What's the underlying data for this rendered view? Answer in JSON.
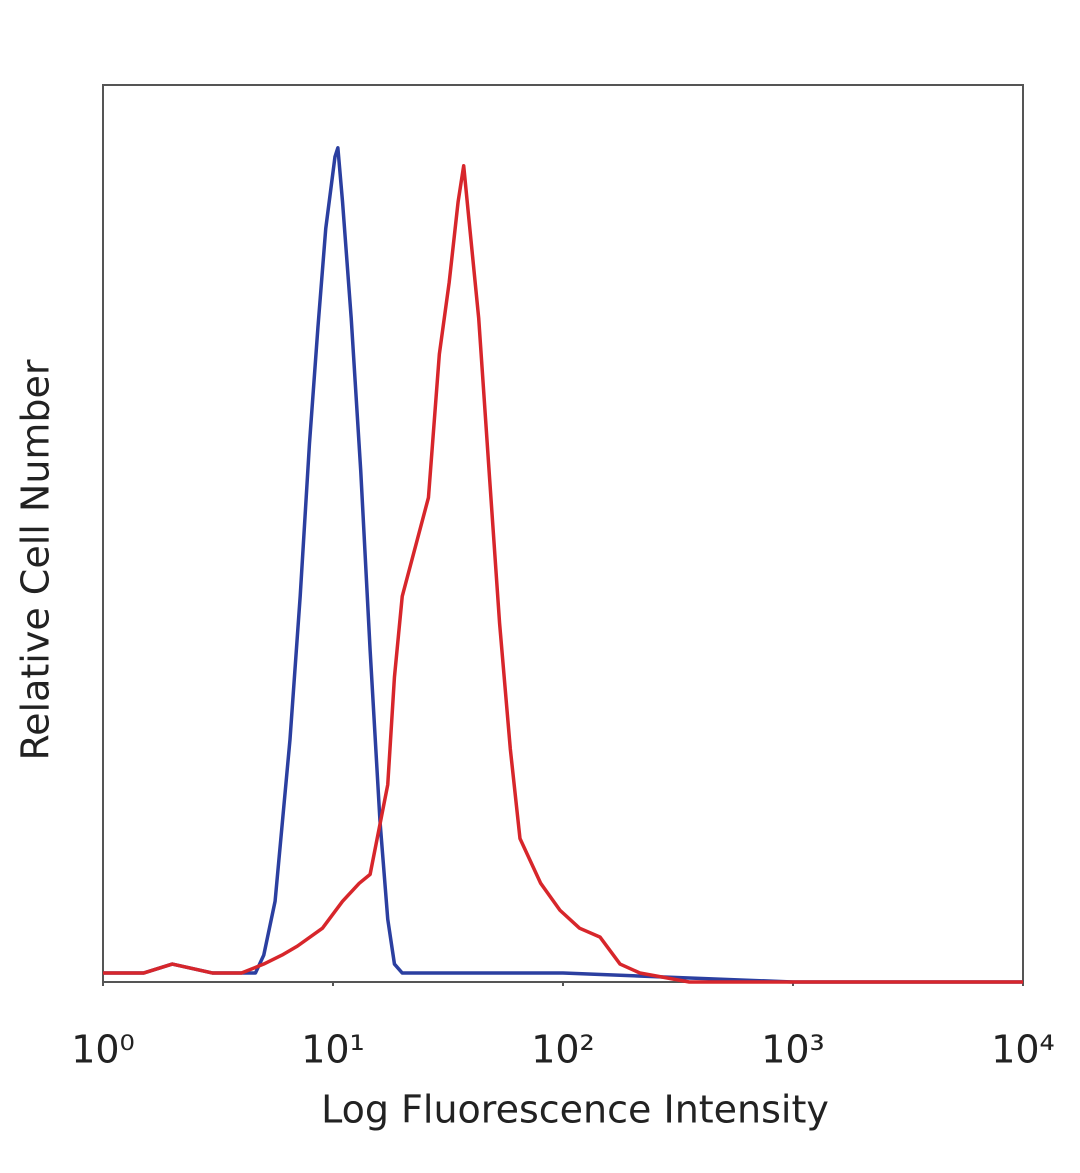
{
  "chart_data": {
    "type": "line",
    "xlabel": "Log Fluorescence Intensity",
    "ylabel": "Relative Cell Number",
    "xscale": "log",
    "xlim": [
      1,
      10000
    ],
    "xticks": [
      {
        "value": 1,
        "label": "10⁰"
      },
      {
        "value": 10,
        "label": "10¹"
      },
      {
        "value": 100,
        "label": "10²"
      },
      {
        "value": 1000,
        "label": "10³"
      },
      {
        "value": 10000,
        "label": "10⁴"
      }
    ],
    "ylim": [
      0,
      100
    ],
    "series": [
      {
        "color": "#2b3fa0",
        "x": [
          1,
          1.5,
          2,
          3,
          4,
          4.6,
          5,
          5.6,
          6.5,
          7.2,
          7.9,
          8.6,
          9.3,
          10.2,
          10.5,
          11,
          12,
          13.2,
          14.5,
          16,
          17.3,
          18.5,
          20,
          30,
          60,
          100,
          1000,
          10000
        ],
        "values": [
          1,
          1,
          2,
          1,
          1,
          1,
          3,
          9,
          27,
          43,
          60,
          73,
          84,
          92,
          93,
          87,
          74,
          57,
          37,
          18,
          7,
          2,
          1,
          1,
          1,
          1,
          0,
          0
        ]
      },
      {
        "color": "#d7262b",
        "x": [
          1,
          1.5,
          2,
          3,
          4,
          5,
          6,
          7,
          9,
          11,
          13,
          14.5,
          17.3,
          18.5,
          20,
          26,
          29,
          32,
          35,
          37,
          39,
          43,
          48,
          53,
          59,
          65,
          80,
          97,
          118,
          145,
          177,
          216,
          354,
          1000,
          10000
        ],
        "values": [
          1,
          1,
          2,
          1,
          1,
          2,
          3,
          4,
          6,
          9,
          11,
          12,
          22,
          34,
          43,
          54,
          70,
          78,
          87,
          91,
          85,
          74,
          56,
          40,
          26,
          16,
          11,
          8,
          6,
          5,
          2,
          1,
          0,
          0,
          0
        ]
      }
    ]
  }
}
